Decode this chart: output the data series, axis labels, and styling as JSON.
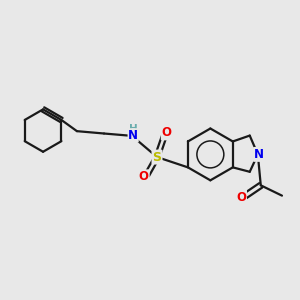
{
  "bg_color": "#e8e8e8",
  "bond_color": "#1a1a1a",
  "atom_colors": {
    "N": "#0000ee",
    "O": "#ee0000",
    "S": "#bbbb00",
    "H": "#6aadad"
  },
  "figsize": [
    3.0,
    3.0
  ],
  "dpi": 100
}
